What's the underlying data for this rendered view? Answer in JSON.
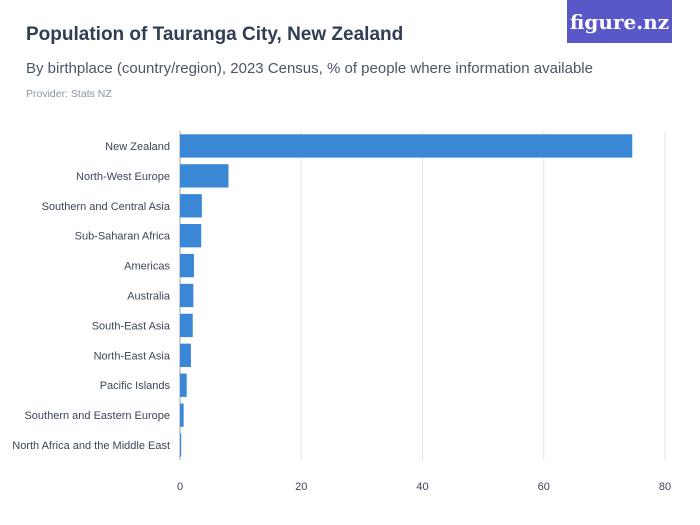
{
  "header": {
    "title": "Population of Tauranga City, New Zealand",
    "subtitle": "By birthplace (country/region), 2023 Census, % of people where information available",
    "provider": "Provider: Stats NZ"
  },
  "logo": {
    "text": "figure.nz",
    "color": "#5a57c9"
  },
  "chart_data": {
    "type": "bar",
    "orientation": "horizontal",
    "title": "Population of Tauranga City, New Zealand",
    "subtitle": "By birthplace (country/region), 2023 Census, % of people where information available",
    "categories": [
      "New Zealand",
      "North-West Europe",
      "Southern and Central Asia",
      "Sub-Saharan Africa",
      "Americas",
      "Australia",
      "South-East Asia",
      "North-East Asia",
      "Pacific Islands",
      "Southern and Eastern Europe",
      "North Africa and the Middle East"
    ],
    "values": [
      74.6,
      8.0,
      3.6,
      3.5,
      2.3,
      2.2,
      2.1,
      1.8,
      1.1,
      0.6,
      0.2
    ],
    "xlim": [
      0,
      80
    ],
    "xticks": [
      0,
      20,
      40,
      60,
      80
    ],
    "grid": true,
    "bar_color": "#3a87d5"
  }
}
